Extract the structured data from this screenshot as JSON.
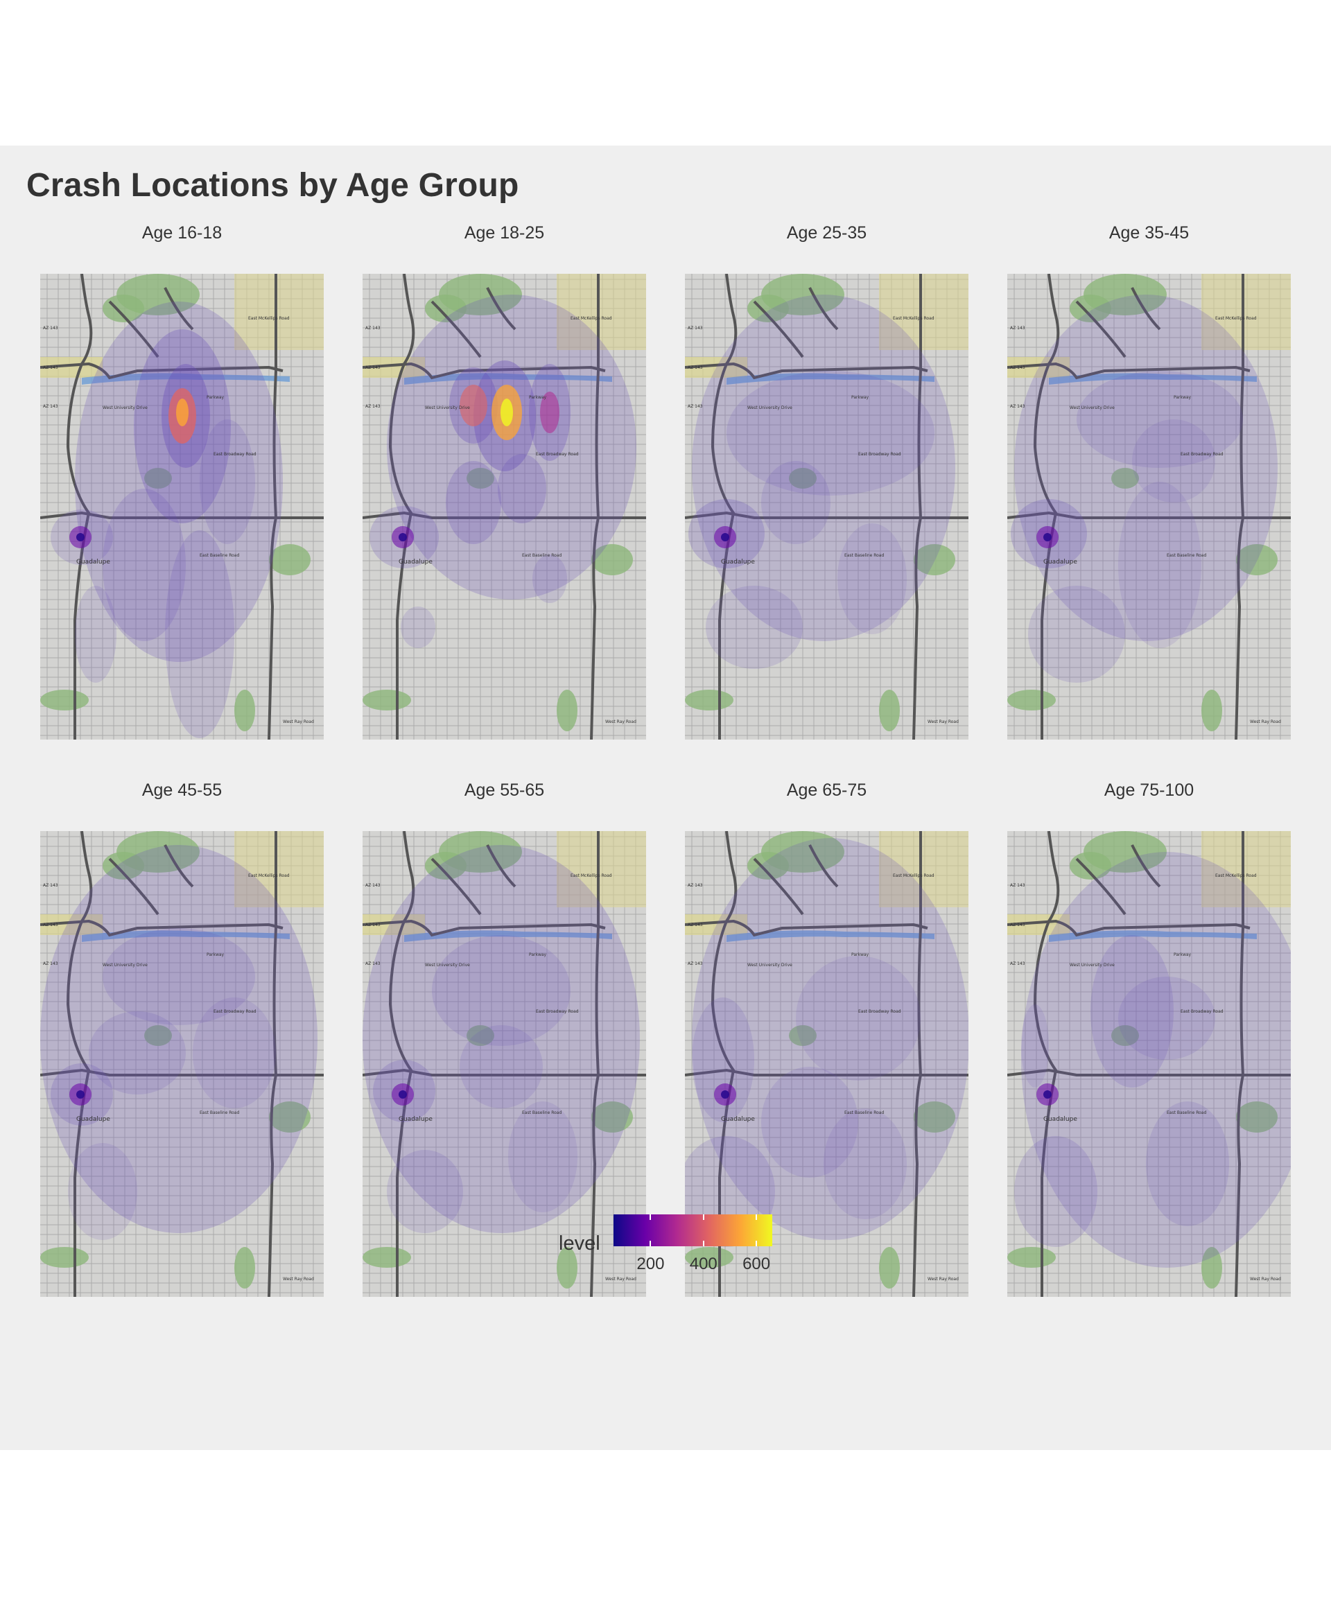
{
  "title": "Crash Locations by Age Group",
  "panels": [
    {
      "label": "Age 16-18"
    },
    {
      "label": "Age 18-25"
    },
    {
      "label": "Age 25-35"
    },
    {
      "label": "Age 35-45"
    },
    {
      "label": "Age 45-55"
    },
    {
      "label": "Age 55-65"
    },
    {
      "label": "Age 65-75"
    },
    {
      "label": "Age 75-100"
    }
  ],
  "map_labels": {
    "place": "Guadalupe",
    "highway": "AZ 143",
    "road_mckellips": "East McKellips Road",
    "road_university": "West University Drive",
    "road_broadway": "East Broadway Road",
    "road_baseline": "East Baseline Road",
    "road_ray": "West Ray Road",
    "road_parkway": "Parkway"
  },
  "legend": {
    "title": "level",
    "ticks": [
      200,
      400,
      600
    ],
    "range": [
      60,
      660
    ],
    "palette": [
      "#0d0887",
      "#6a00a8",
      "#b12a90",
      "#e16462",
      "#fca636",
      "#f0f921"
    ]
  },
  "colors": {
    "figure_background": "#efefef",
    "map_base": "#d3d3d1",
    "road_major": "#555555",
    "road_minor": "#8c8c8c",
    "park": "#8db77a",
    "water": "#6d9ed6",
    "sand": "#dcd68f",
    "density_fill": "#6a50b8"
  }
}
